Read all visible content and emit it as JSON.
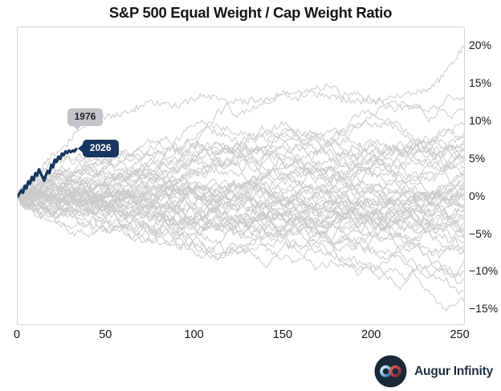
{
  "title": "S&P 500 Equal Weight / Cap Weight Ratio",
  "colors": {
    "highlight_navy": "#17365f",
    "background_lines": "#cbcbcb",
    "plot_border": "#d4d4d4",
    "tick_text": "#141414",
    "annotation_gray_bg": "#c4c4c8",
    "annotation_gray_text": "#222428",
    "annotation_navy_text": "#ffffff",
    "brand_text": "#1e2d42",
    "brand_circle": "#1b2838"
  },
  "branding": {
    "name": "Augur Infinity",
    "icon": "infinity-icon"
  },
  "chart_data": {
    "type": "line",
    "title": "S&P 500 Equal Weight / Cap Weight Ratio",
    "xlabel": "",
    "ylabel": "",
    "grid": false,
    "legend": "none",
    "x_axis": "trading days of year",
    "xlim": [
      0,
      252
    ],
    "ylim": [
      -17,
      22.5
    ],
    "x_ticks": [
      0,
      50,
      100,
      150,
      200,
      250
    ],
    "y_ticks": [
      {
        "value": 20,
        "label": "20%"
      },
      {
        "value": 15,
        "label": "15%"
      },
      {
        "value": 10,
        "label": "10%"
      },
      {
        "value": 5,
        "label": "5%"
      },
      {
        "value": 0,
        "label": "0%"
      },
      {
        "value": -5,
        "label": "−5%"
      },
      {
        "value": -10,
        "label": "−10%"
      },
      {
        "value": -15,
        "label": "−15%"
      }
    ],
    "highlight_series": {
      "name": "2026",
      "x": [
        0,
        1,
        2,
        3,
        4,
        5,
        6,
        7,
        8,
        9,
        10,
        11,
        12,
        13,
        14,
        15,
        16,
        17,
        18,
        19,
        20,
        21,
        22,
        23,
        24,
        25,
        26,
        27,
        28,
        29,
        30,
        31,
        32,
        33
      ],
      "y": [
        0,
        0.4,
        0.8,
        0.5,
        1.4,
        1.1,
        2.0,
        1.7,
        2.6,
        2.2,
        3.1,
        2.8,
        3.6,
        3.1,
        2.6,
        2.1,
        2.9,
        3.4,
        3.1,
        4.2,
        3.9,
        4.9,
        4.6,
        5.3,
        5.0,
        5.7,
        5.5,
        6.0,
        5.8,
        6.1,
        5.9,
        6.1,
        6.0,
        6.3
      ]
    },
    "labeled_background_series": {
      "name": "1976",
      "anchor_x": [
        0,
        5,
        12,
        20,
        28,
        35,
        45,
        60,
        75,
        90,
        105,
        120,
        140,
        160,
        180,
        200,
        215,
        230,
        240,
        246,
        252
      ],
      "anchor_y": [
        0,
        2,
        3.5,
        5.5,
        7,
        9,
        10.5,
        11,
        12.5,
        12,
        13.5,
        12.5,
        13,
        14,
        13,
        12.5,
        13.5,
        14,
        16,
        18,
        20
      ]
    },
    "background_series_end_values": [
      13,
      11.5,
      9.5,
      8.5,
      8,
      7.5,
      7,
      6.5,
      6,
      5.5,
      5,
      5,
      4.5,
      4,
      3.5,
      3,
      3,
      2.5,
      2,
      2,
      1.5,
      1.5,
      1,
      0.5,
      0,
      0,
      -0.5,
      -1,
      -1,
      -1.5,
      -2,
      -2,
      -2.5,
      -3,
      -3,
      -3.5,
      -4,
      -4.5,
      -5,
      -5.5,
      -6,
      -6.5,
      -7,
      -7.5,
      -8.5,
      -10,
      -11,
      -12.5,
      -14
    ],
    "annotations": [
      {
        "text": "1976",
        "style": "gray",
        "tail": "down",
        "x": 32,
        "y": 8.4
      },
      {
        "text": "2026",
        "style": "navy",
        "tail": "left",
        "x": 33,
        "y": 6.3
      }
    ]
  }
}
